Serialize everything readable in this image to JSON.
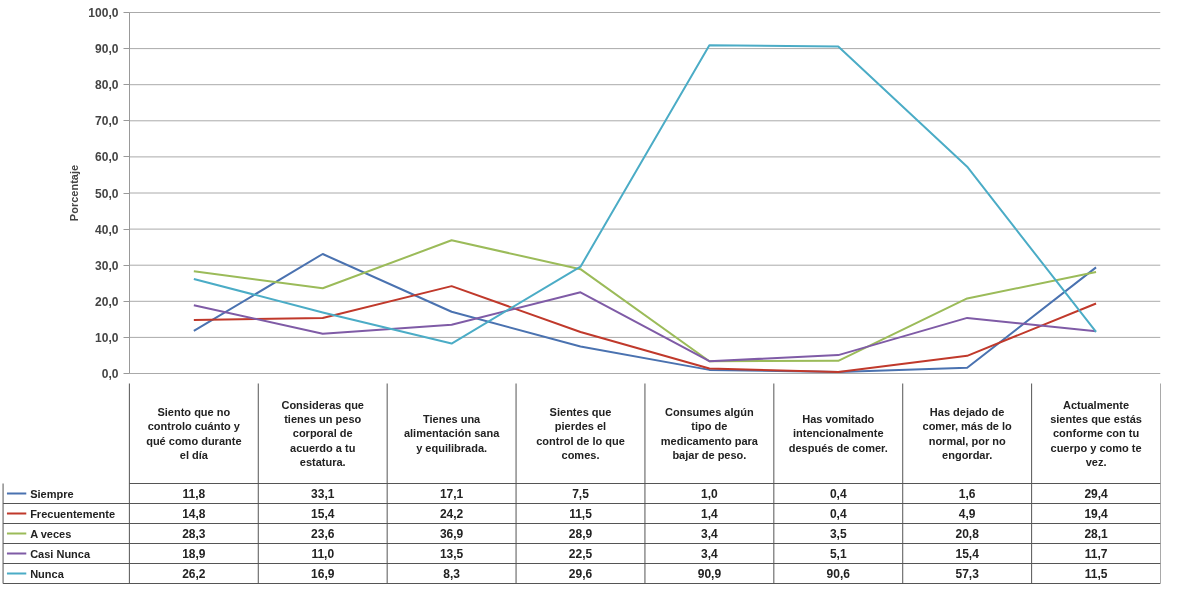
{
  "chart_data": {
    "type": "line",
    "ylabel": "Porcentaje",
    "categories": [
      "Siento que no controlo cuánto y qué como durante el día",
      "Consideras que tienes un peso corporal de acuerdo a tu estatura.",
      "Tienes una alimentación sana y equilibrada.",
      "Sientes que pierdes el control de lo que comes.",
      "Consumes algún tipo de medicamento para bajar de peso.",
      "Has vomitado intencionalmente después de comer.",
      "Has dejado de comer, más de lo normal, por no engordar.",
      "Actualmente sientes que estás conforme con tu cuerpo y como te vez."
    ],
    "series": [
      {
        "name": "Siempre",
        "color": "#4a72b0",
        "values": [
          11.8,
          33.1,
          17.1,
          7.5,
          1.0,
          0.4,
          1.6,
          29.4
        ],
        "value_labels": [
          "11,8",
          "33,1",
          "17,1",
          "7,5",
          "1,0",
          "0,4",
          "1,6",
          "29,4"
        ]
      },
      {
        "name": "Frecuentemente",
        "color": "#c0392b",
        "values": [
          14.8,
          15.4,
          24.2,
          11.5,
          1.4,
          0.4,
          4.9,
          19.4
        ],
        "value_labels": [
          "14,8",
          "15,4",
          "24,2",
          "11,5",
          "1,4",
          "0,4",
          "4,9",
          "19,4"
        ]
      },
      {
        "name": "A veces",
        "color": "#9bbb59",
        "values": [
          28.3,
          23.6,
          36.9,
          28.9,
          3.4,
          3.5,
          20.8,
          28.1
        ],
        "value_labels": [
          "28,3",
          "23,6",
          "36,9",
          "28,9",
          "3,4",
          "3,5",
          "20,8",
          "28,1"
        ]
      },
      {
        "name": "Casi Nunca",
        "color": "#7f5ba6",
        "values": [
          18.9,
          11.0,
          13.5,
          22.5,
          3.4,
          5.1,
          15.4,
          11.7
        ],
        "value_labels": [
          "18,9",
          "11,0",
          "13,5",
          "22,5",
          "3,4",
          "5,1",
          "15,4",
          "11,7"
        ]
      },
      {
        "name": "Nunca",
        "color": "#4bacc6",
        "values": [
          26.2,
          16.9,
          8.3,
          29.6,
          90.9,
          90.6,
          57.3,
          11.5
        ],
        "value_labels": [
          "26,2",
          "16,9",
          "8,3",
          "29,6",
          "90,9",
          "90,6",
          "57,3",
          "11,5"
        ]
      }
    ],
    "ylim": [
      0,
      100
    ],
    "yticks": [
      {
        "value": 0,
        "label": "0,0"
      },
      {
        "value": 10,
        "label": "10,0"
      },
      {
        "value": 20,
        "label": "20,0"
      },
      {
        "value": 30,
        "label": "30,0"
      },
      {
        "value": 40,
        "label": "40,0"
      },
      {
        "value": 50,
        "label": "50,0"
      },
      {
        "value": 60,
        "label": "60,0"
      },
      {
        "value": 70,
        "label": "70,0"
      },
      {
        "value": 80,
        "label": "80,0"
      },
      {
        "value": 90,
        "label": "90,0"
      },
      {
        "value": 100,
        "label": "100,0"
      }
    ],
    "grid": "y",
    "line_style": "solid",
    "legend": "bottom left"
  }
}
